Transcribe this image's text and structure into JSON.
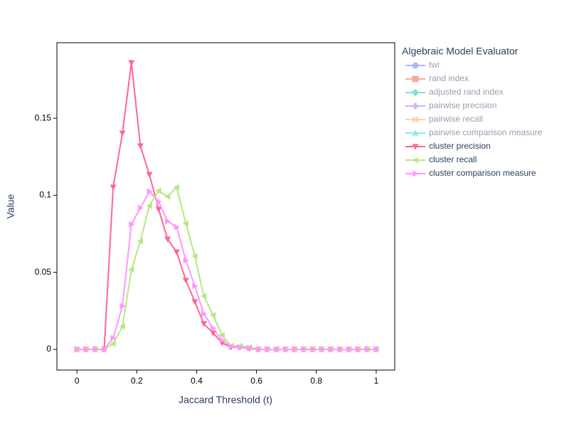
{
  "chart_data": {
    "type": "line",
    "x_label": "Jaccard Threshold (t)",
    "y_label": "Value",
    "legend_title": "Algebraic Model Evaluator",
    "legend_position": "right",
    "grid": false,
    "xlim": [
      -0.067,
      1.062
    ],
    "ylim": [
      -0.0134,
      0.199
    ],
    "xticks": [
      0,
      0.2,
      0.4,
      0.6,
      0.8,
      1
    ],
    "yticks": [
      0,
      0.05,
      0.1,
      0.15
    ],
    "x": [
      0,
      0.03,
      0.061,
      0.091,
      0.121,
      0.152,
      0.182,
      0.212,
      0.242,
      0.273,
      0.303,
      0.333,
      0.364,
      0.394,
      0.424,
      0.455,
      0.485,
      0.515,
      0.545,
      0.576,
      0.606,
      0.636,
      0.667,
      0.697,
      0.727,
      0.758,
      0.788,
      0.818,
      0.848,
      0.879,
      0.909,
      0.939,
      0.97,
      1
    ],
    "series": [
      {
        "name": "twi",
        "color": "#636efa",
        "marker": "circle",
        "visible": false
      },
      {
        "name": "rand index",
        "color": "#EF553B",
        "marker": "square",
        "visible": false
      },
      {
        "name": "adjusted rand index",
        "color": "#00cc96",
        "marker": "diamond",
        "visible": false
      },
      {
        "name": "pairwise precision",
        "color": "#ab63fa",
        "marker": "cross",
        "visible": false
      },
      {
        "name": "pairwise recall",
        "color": "#FFA15A",
        "marker": "x",
        "visible": false
      },
      {
        "name": "pairwise comparison measure",
        "color": "#19d3f3",
        "marker": "triangle-up",
        "visible": false
      },
      {
        "name": "cluster precision",
        "color": "#FF6692",
        "marker": "triangle-down",
        "visible": true,
        "values": [
          0,
          0,
          0,
          0,
          0.1052,
          0.1403,
          0.186,
          0.132,
          0.1135,
          0.0909,
          0.0715,
          0.0632,
          0.0448,
          0.0309,
          0.0166,
          0.0106,
          0.0042,
          0.0014,
          0.0014,
          0.0005,
          0,
          0,
          0,
          0,
          0,
          0,
          0,
          0,
          0,
          0,
          0,
          0,
          0,
          0
        ]
      },
      {
        "name": "cluster recall",
        "color": "#B6E880",
        "marker": "triangle-left",
        "visible": true,
        "values": [
          0,
          0,
          0,
          0,
          0.0037,
          0.0148,
          0.0517,
          0.0702,
          0.0932,
          0.1029,
          0.0992,
          0.1052,
          0.0817,
          0.0605,
          0.0346,
          0.0222,
          0.0092,
          0.0023,
          0.0023,
          0.0014,
          0,
          0,
          0,
          0,
          0,
          0,
          0,
          0,
          0,
          0,
          0,
          0,
          0,
          0
        ]
      },
      {
        "name": "cluster comparison measure",
        "color": "#FF97FF",
        "marker": "triangle-right",
        "visible": true,
        "values": [
          0,
          0,
          0,
          0,
          0.0074,
          0.0282,
          0.0812,
          0.0918,
          0.1025,
          0.096,
          0.0831,
          0.0794,
          0.0577,
          0.0411,
          0.0231,
          0.0138,
          0.006,
          0.0018,
          0.0014,
          0.0009,
          0,
          0,
          0,
          0,
          0,
          0,
          0,
          0,
          0,
          0,
          0,
          0,
          0,
          0
        ]
      }
    ]
  }
}
